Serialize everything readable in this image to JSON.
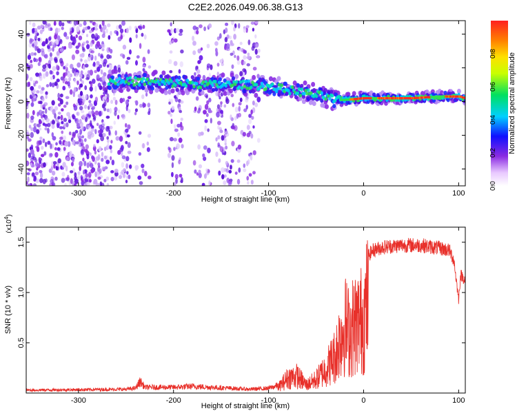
{
  "title": "C2E2.2026.049.06.38.G13",
  "chart_data": [
    {
      "type": "heatmap",
      "name": "spectrogram",
      "xlabel": "Height of straight line (km)",
      "ylabel": "Frequency (Hz)",
      "xlim": [
        -355,
        107
      ],
      "ylim": [
        -50,
        48
      ],
      "x_ticks": [
        -300,
        -200,
        -100,
        0,
        100
      ],
      "x_tick_labels": [
        "-300",
        "-200",
        "-100",
        "0",
        "100"
      ],
      "y_ticks": [
        -40,
        -20,
        0,
        20,
        40
      ],
      "y_tick_labels": [
        "-40",
        "-20",
        "0",
        "20",
        "40"
      ],
      "signal_band": {
        "x": [
          -270,
          -240,
          -200,
          -160,
          -120,
          -100,
          -80,
          -60,
          -40,
          -30,
          -20,
          0,
          20,
          50,
          80,
          100,
          107
        ],
        "center_hz": [
          12,
          12,
          11,
          10,
          10,
          9,
          7,
          5,
          3,
          1,
          1,
          2,
          2,
          2,
          3,
          3,
          2
        ]
      },
      "colorbar": {
        "label": "Normalized spectral amplitude",
        "range": [
          0,
          1
        ],
        "ticks": [
          0,
          0.2,
          0.4,
          0.6,
          0.8
        ],
        "tick_labels": [
          "0.0",
          "0.2",
          "0.4",
          "0.6",
          "0.8"
        ]
      }
    },
    {
      "type": "line",
      "name": "snr",
      "xlabel": "Height of straight line (km)",
      "ylabel": "SNR (10 * v/v)",
      "exponent_label": "(x10",
      "exponent_power": "4",
      "exponent_close": ")",
      "color": "#e8302a",
      "xlim": [
        -355,
        107
      ],
      "ylim": [
        0,
        1.65
      ],
      "x_ticks": [
        -300,
        -200,
        -100,
        0,
        100
      ],
      "x_tick_labels": [
        "-300",
        "-200",
        "-100",
        "0",
        "100"
      ],
      "y_ticks": [
        0.5,
        1.0,
        1.5
      ],
      "y_tick_labels": [
        "0.5",
        "1.0",
        "1.5"
      ],
      "series": {
        "x": [
          -355,
          -250,
          -240,
          -235,
          -230,
          -200,
          -180,
          -160,
          -120,
          -100,
          -90,
          -80,
          -70,
          -60,
          -50,
          -40,
          -30,
          -25,
          -20,
          -15,
          -10,
          -5,
          0,
          5,
          10,
          20,
          40,
          60,
          80,
          90,
          95,
          100,
          102,
          107
        ],
        "y": [
          0.03,
          0.04,
          0.05,
          0.12,
          0.06,
          0.06,
          0.07,
          0.06,
          0.04,
          0.05,
          0.08,
          0.22,
          0.25,
          0.12,
          0.2,
          0.35,
          0.55,
          0.8,
          1.0,
          0.9,
          1.0,
          1.05,
          1.1,
          1.4,
          1.45,
          1.48,
          1.5,
          1.5,
          1.47,
          1.45,
          1.35,
          0.95,
          1.2,
          1.15
        ]
      }
    }
  ]
}
